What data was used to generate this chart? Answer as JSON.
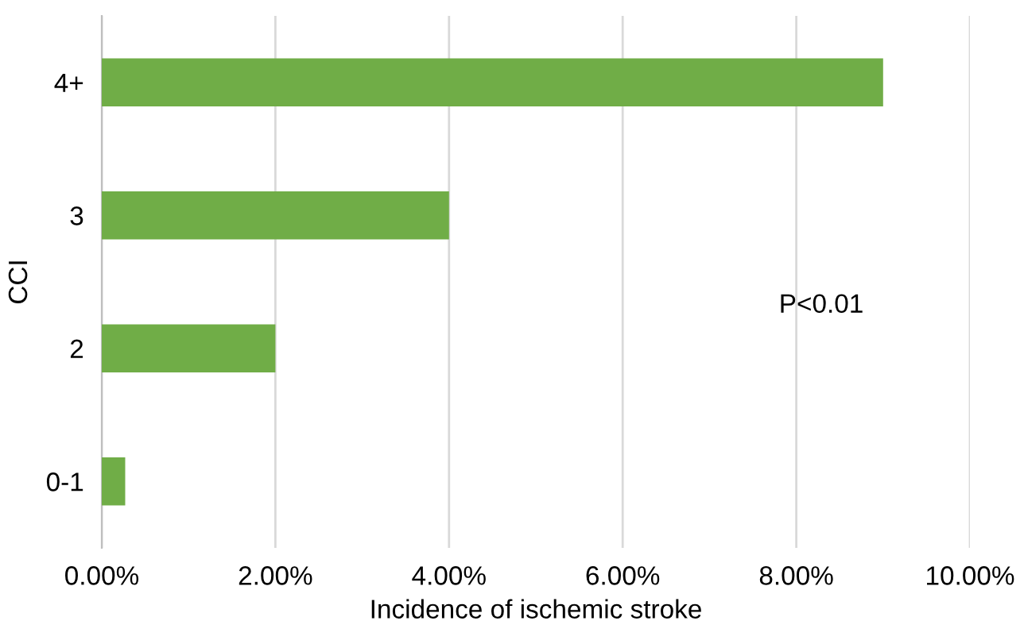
{
  "chart_data": {
    "type": "bar",
    "orientation": "horizontal",
    "categories": [
      "4+",
      "3",
      "2",
      "0-1"
    ],
    "values": [
      9.0,
      4.0,
      2.0,
      0.27
    ],
    "color": "#70ad47",
    "xlim": [
      0,
      10
    ],
    "xticks": [
      {
        "value": 0,
        "label": "0.00%"
      },
      {
        "value": 2,
        "label": "2.00%"
      },
      {
        "value": 4,
        "label": "4.00%"
      },
      {
        "value": 6,
        "label": "6.00%"
      },
      {
        "value": 8,
        "label": "8.00%"
      },
      {
        "value": 10,
        "label": "10.00%"
      }
    ],
    "xlabel": "Incidence of ischemic stroke",
    "ylabel": "CCI",
    "grid": "x",
    "annotations": [
      "P<0.01"
    ]
  }
}
